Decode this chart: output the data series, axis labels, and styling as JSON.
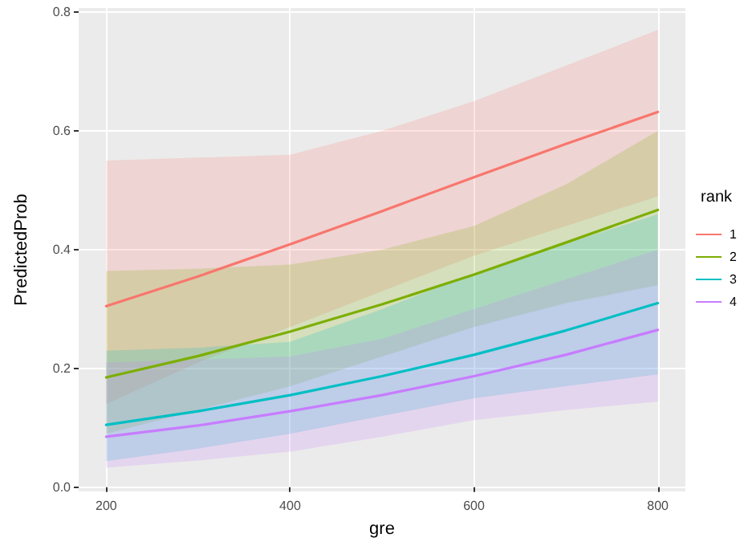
{
  "chart_data": {
    "type": "line",
    "xlabel": "gre",
    "ylabel": "PredictedProb",
    "legend_title": "rank",
    "legend": "right",
    "grid": true,
    "marker": "none",
    "line_style": "solid",
    "x": [
      200,
      300,
      400,
      500,
      600,
      700,
      800
    ],
    "xlim": [
      170,
      830
    ],
    "xticks": [
      200,
      400,
      600,
      800
    ],
    "ylim": [
      -0.007,
      0.807
    ],
    "yticks": [
      {
        "value": 0,
        "label": "0.0"
      },
      0.2,
      0.4,
      0.6,
      0.8
    ],
    "series": [
      {
        "name": "1",
        "color": "#f8766d",
        "values": [
          0.305,
          0.355,
          0.409,
          0.465,
          0.522,
          0.578,
          0.632
        ],
        "lower": [
          0.14,
          0.21,
          0.27,
          0.33,
          0.39,
          0.44,
          0.49
        ],
        "upper": [
          0.55,
          0.555,
          0.56,
          0.6,
          0.65,
          0.71,
          0.77
        ]
      },
      {
        "name": "2",
        "color": "#7cae00",
        "values": [
          0.185,
          0.221,
          0.262,
          0.308,
          0.358,
          0.412,
          0.467
        ],
        "lower": [
          0.09,
          0.13,
          0.17,
          0.22,
          0.27,
          0.31,
          0.34
        ],
        "upper": [
          0.364,
          0.368,
          0.375,
          0.4,
          0.44,
          0.51,
          0.6
        ]
      },
      {
        "name": "3",
        "color": "#00bfc4",
        "values": [
          0.105,
          0.128,
          0.155,
          0.187,
          0.223,
          0.264,
          0.31
        ],
        "lower": [
          0.044,
          0.065,
          0.09,
          0.12,
          0.15,
          0.17,
          0.19
        ],
        "upper": [
          0.23,
          0.235,
          0.245,
          0.3,
          0.36,
          0.41,
          0.46
        ]
      },
      {
        "name": "4",
        "color": "#c77cff",
        "values": [
          0.085,
          0.104,
          0.128,
          0.155,
          0.187,
          0.223,
          0.265
        ],
        "lower": [
          0.033,
          0.045,
          0.06,
          0.085,
          0.113,
          0.13,
          0.144
        ],
        "upper": [
          0.21,
          0.215,
          0.22,
          0.25,
          0.3,
          0.35,
          0.4
        ]
      }
    ]
  }
}
